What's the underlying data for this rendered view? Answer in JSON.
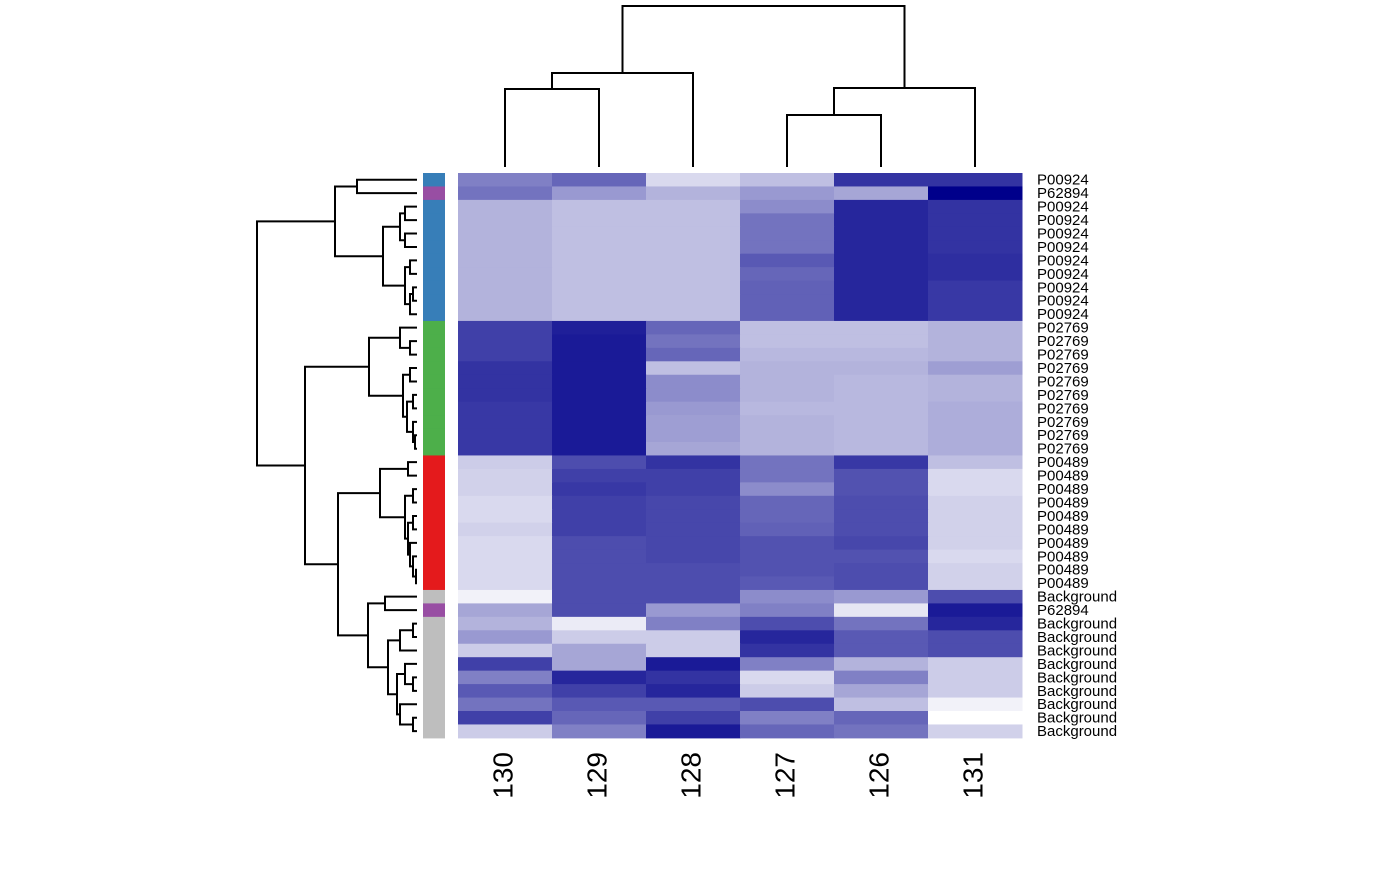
{
  "chart_data": {
    "type": "heatmap",
    "columns": [
      "130",
      "129",
      "128",
      "127",
      "126",
      "131"
    ],
    "rows": [
      "P00924",
      "P62894",
      "P00924",
      "P00924",
      "P00924",
      "P00924",
      "P00924",
      "P00924",
      "P00924",
      "P00924",
      "P00924",
      "P02769",
      "P02769",
      "P02769",
      "P02769",
      "P02769",
      "P02769",
      "P02769",
      "P02769",
      "P02769",
      "P02769",
      "P00489",
      "P00489",
      "P00489",
      "P00489",
      "P00489",
      "P00489",
      "P00489",
      "P00489",
      "P00489",
      "P00489",
      "Background",
      "P62894",
      "Background",
      "Background",
      "Background",
      "Background",
      "Background",
      "Background",
      "Background",
      "Background",
      "Background"
    ],
    "row_colors": [
      "#377eb8",
      "#984ea3",
      "#377eb8",
      "#377eb8",
      "#377eb8",
      "#377eb8",
      "#377eb8",
      "#377eb8",
      "#377eb8",
      "#377eb8",
      "#377eb8",
      "#4daf4a",
      "#4daf4a",
      "#4daf4a",
      "#4daf4a",
      "#4daf4a",
      "#4daf4a",
      "#4daf4a",
      "#4daf4a",
      "#4daf4a",
      "#4daf4a",
      "#e41a1c",
      "#e41a1c",
      "#e41a1c",
      "#e41a1c",
      "#e41a1c",
      "#e41a1c",
      "#e41a1c",
      "#e41a1c",
      "#e41a1c",
      "#e41a1c",
      "#bebebe",
      "#984ea3",
      "#bebebe",
      "#bebebe",
      "#bebebe",
      "#bebebe",
      "#bebebe",
      "#bebebe",
      "#bebebe",
      "#bebebe",
      "#bebebe"
    ],
    "color_low": "#ffffff",
    "color_high": "#00008b",
    "values": [
      [
        0.5,
        0.6,
        0.15,
        0.25,
        0.8,
        0.8
      ],
      [
        0.55,
        0.4,
        0.3,
        0.4,
        0.35,
        1.0
      ],
      [
        0.3,
        0.25,
        0.25,
        0.45,
        0.85,
        0.8
      ],
      [
        0.3,
        0.25,
        0.25,
        0.55,
        0.85,
        0.8
      ],
      [
        0.3,
        0.25,
        0.25,
        0.55,
        0.85,
        0.8
      ],
      [
        0.3,
        0.25,
        0.25,
        0.55,
        0.85,
        0.8
      ],
      [
        0.3,
        0.25,
        0.25,
        0.65,
        0.85,
        0.82
      ],
      [
        0.3,
        0.25,
        0.25,
        0.6,
        0.85,
        0.82
      ],
      [
        0.3,
        0.25,
        0.25,
        0.62,
        0.85,
        0.78
      ],
      [
        0.3,
        0.25,
        0.25,
        0.62,
        0.85,
        0.78
      ],
      [
        0.3,
        0.25,
        0.25,
        0.62,
        0.85,
        0.78
      ],
      [
        0.75,
        0.88,
        0.6,
        0.25,
        0.25,
        0.3
      ],
      [
        0.75,
        0.9,
        0.55,
        0.25,
        0.25,
        0.3
      ],
      [
        0.75,
        0.9,
        0.6,
        0.28,
        0.28,
        0.3
      ],
      [
        0.8,
        0.9,
        0.25,
        0.3,
        0.3,
        0.38
      ],
      [
        0.8,
        0.9,
        0.45,
        0.3,
        0.28,
        0.3
      ],
      [
        0.8,
        0.9,
        0.45,
        0.3,
        0.28,
        0.3
      ],
      [
        0.78,
        0.9,
        0.4,
        0.28,
        0.28,
        0.32
      ],
      [
        0.78,
        0.9,
        0.38,
        0.3,
        0.28,
        0.32
      ],
      [
        0.78,
        0.9,
        0.38,
        0.3,
        0.28,
        0.32
      ],
      [
        0.78,
        0.9,
        0.35,
        0.3,
        0.28,
        0.32
      ],
      [
        0.2,
        0.7,
        0.8,
        0.55,
        0.78,
        0.25
      ],
      [
        0.18,
        0.75,
        0.75,
        0.55,
        0.68,
        0.15
      ],
      [
        0.18,
        0.78,
        0.75,
        0.45,
        0.68,
        0.15
      ],
      [
        0.15,
        0.75,
        0.72,
        0.6,
        0.7,
        0.18
      ],
      [
        0.15,
        0.75,
        0.72,
        0.6,
        0.7,
        0.18
      ],
      [
        0.18,
        0.75,
        0.72,
        0.62,
        0.7,
        0.18
      ],
      [
        0.15,
        0.7,
        0.72,
        0.68,
        0.72,
        0.18
      ],
      [
        0.15,
        0.7,
        0.72,
        0.68,
        0.68,
        0.15
      ],
      [
        0.15,
        0.7,
        0.7,
        0.68,
        0.7,
        0.18
      ],
      [
        0.15,
        0.7,
        0.7,
        0.65,
        0.7,
        0.18
      ],
      [
        0.05,
        0.7,
        0.7,
        0.45,
        0.4,
        0.7
      ],
      [
        0.35,
        0.7,
        0.4,
        0.5,
        0.1,
        0.9
      ],
      [
        0.3,
        0.08,
        0.5,
        0.7,
        0.55,
        0.85
      ],
      [
        0.4,
        0.2,
        0.2,
        0.85,
        0.65,
        0.7
      ],
      [
        0.2,
        0.35,
        0.2,
        0.8,
        0.65,
        0.7
      ],
      [
        0.75,
        0.35,
        0.9,
        0.5,
        0.3,
        0.2
      ],
      [
        0.5,
        0.85,
        0.8,
        0.15,
        0.5,
        0.2
      ],
      [
        0.65,
        0.75,
        0.85,
        0.2,
        0.35,
        0.2
      ],
      [
        0.55,
        0.65,
        0.65,
        0.7,
        0.25,
        0.05
      ],
      [
        0.75,
        0.6,
        0.75,
        0.5,
        0.6,
        0.0
      ],
      [
        0.2,
        0.5,
        0.9,
        0.6,
        0.55,
        0.18
      ]
    ]
  }
}
